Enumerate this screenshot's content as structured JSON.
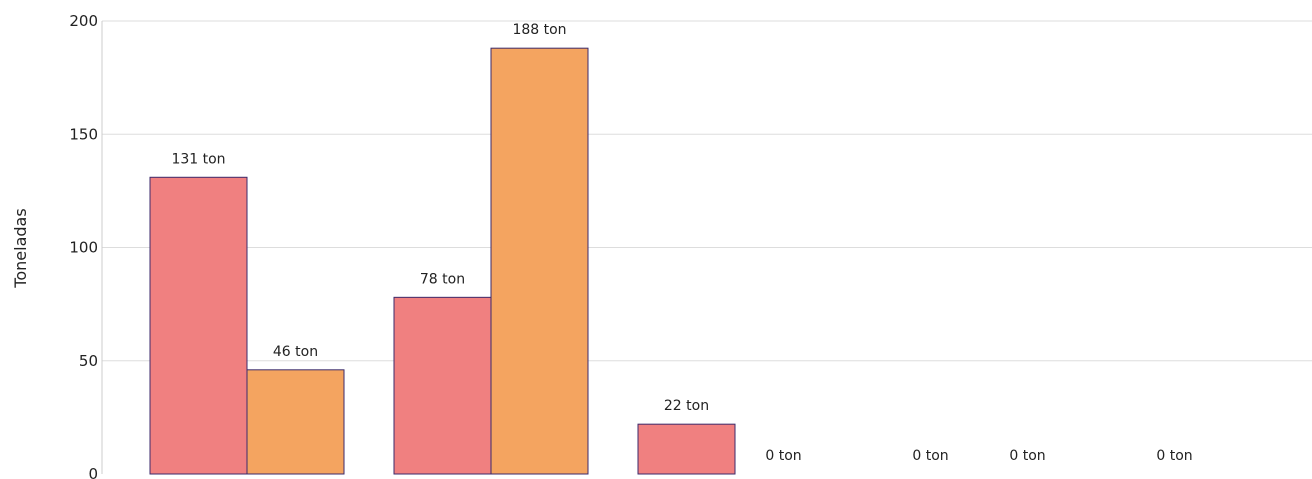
{
  "chart_data": {
    "type": "bar",
    "title": "",
    "xlabel": "",
    "ylabel": "Toneladas",
    "ylim": [
      0,
      200
    ],
    "yticks": [
      0,
      50,
      100,
      150,
      200
    ],
    "grid": true,
    "categories": [
      "",
      "",
      "",
      "",
      ""
    ],
    "series": [
      {
        "color": "#f08080",
        "values": [
          131,
          78,
          22,
          0,
          0
        ],
        "labels": [
          "131 ton",
          "78 ton",
          "22 ton",
          "0 ton",
          "0 ton"
        ]
      },
      {
        "color": "#f4a460",
        "values": [
          46,
          188,
          0,
          0,
          null
        ],
        "labels": [
          "46 ton",
          "188 ton",
          "0 ton",
          "0 ton",
          ""
        ]
      }
    ],
    "bar_outline_color": "#3b2a6b",
    "grid_color": "#dddddd"
  }
}
